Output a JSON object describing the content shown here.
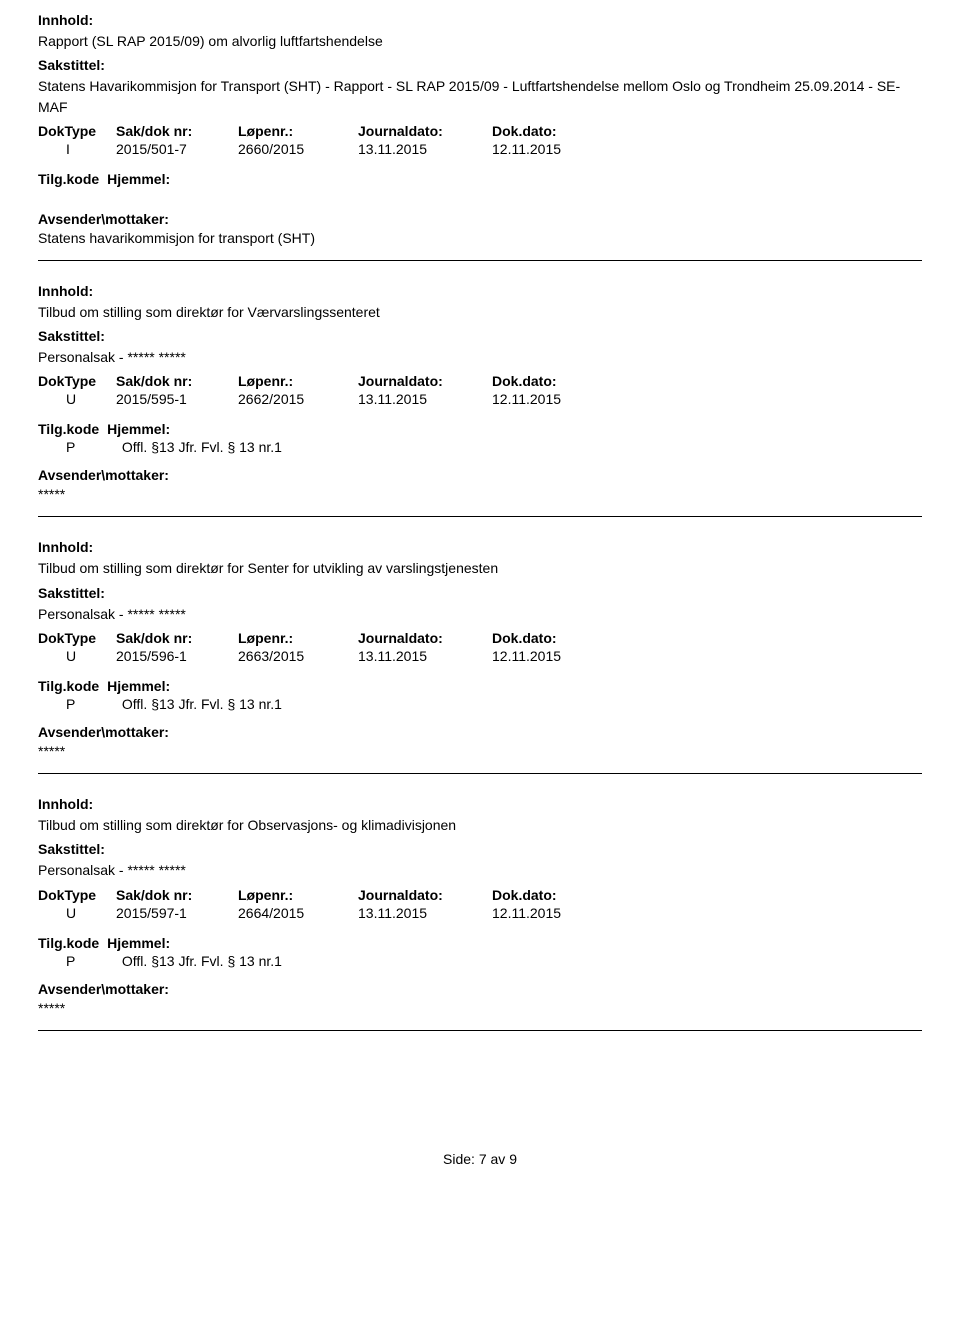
{
  "labels": {
    "innhold": "Innhold:",
    "sakstittel": "Sakstittel:",
    "doktype": "DokType",
    "sakdok": "Sak/dok nr:",
    "lopenr": "Løpenr.:",
    "journaldato": "Journaldato:",
    "dokdato": "Dok.dato:",
    "tilgkode": "Tilg.kode",
    "hjemmel": "Hjemmel:",
    "avsender": "Avsender\\mottaker:"
  },
  "records": [
    {
      "innhold": "Rapport (SL RAP 2015/09) om alvorlig luftfartshendelse",
      "sakstittel": "Statens Havarikommisjon for Transport (SHT) - Rapport - SL RAP 2015/09 - Luftfartshendelse mellom Oslo og Trondheim 25.09.2014 - SE-MAF",
      "doktype": "I",
      "sakdok": "2015/501-7",
      "lopenr": "2660/2015",
      "journaldato": "13.11.2015",
      "dokdato": "12.11.2015",
      "hjemmel_code": "",
      "hjemmel_text": "",
      "avsender": "Statens havarikommisjon for transport (SHT)"
    },
    {
      "innhold": "Tilbud om stilling som direktør for Værvarslingssenteret",
      "sakstittel": "Personalsak - ***** *****",
      "doktype": "U",
      "sakdok": "2015/595-1",
      "lopenr": "2662/2015",
      "journaldato": "13.11.2015",
      "dokdato": "12.11.2015",
      "hjemmel_code": "P",
      "hjemmel_text": "Offl. §13 Jfr. Fvl. § 13 nr.1",
      "avsender": "*****"
    },
    {
      "innhold": "Tilbud om stilling som direktør for Senter for utvikling av varslingstjenesten",
      "sakstittel": "Personalsak - ***** *****",
      "doktype": "U",
      "sakdok": "2015/596-1",
      "lopenr": "2663/2015",
      "journaldato": "13.11.2015",
      "dokdato": "12.11.2015",
      "hjemmel_code": "P",
      "hjemmel_text": "Offl. §13 Jfr. Fvl. § 13 nr.1",
      "avsender": "*****"
    },
    {
      "innhold": "Tilbud om stilling som direktør for Observasjons- og klimadivisjonen",
      "sakstittel": "Personalsak - ***** *****",
      "doktype": "U",
      "sakdok": "2015/597-1",
      "lopenr": "2664/2015",
      "journaldato": "13.11.2015",
      "dokdato": "12.11.2015",
      "hjemmel_code": "P",
      "hjemmel_text": "Offl. §13 Jfr. Fvl. § 13 nr.1",
      "avsender": "*****"
    }
  ],
  "footer": {
    "side_label": "Side:",
    "current": "7",
    "sep": "av",
    "total": "9"
  }
}
